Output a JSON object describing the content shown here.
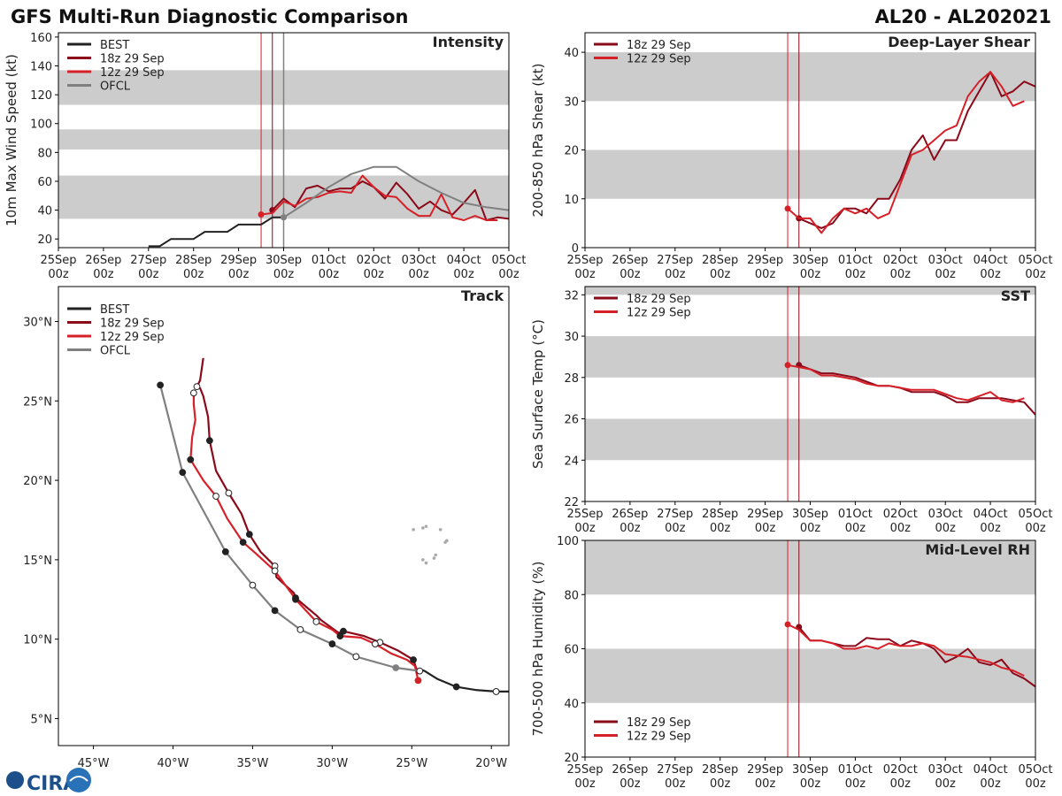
{
  "header": {
    "title": "GFS Multi-Run Diagnostic Comparison",
    "storm_id": "AL20 - AL202021",
    "logo_text": "CIRA"
  },
  "colors": {
    "best": "#222222",
    "run18z": "#8b0a1a",
    "run12z": "#d62028",
    "ofcl": "#808080",
    "band": "#cccccc",
    "land": "#aaaaaa"
  },
  "time_axis": {
    "ticks": [
      "25Sep 00z",
      "26Sep 00z",
      "27Sep 00z",
      "28Sep 00z",
      "29Sep 00z",
      "30Sep 00z",
      "01Oct 00z",
      "02Oct 00z",
      "03Oct 00z",
      "04Oct 00z",
      "05Oct 00z"
    ],
    "init_18z_day": 4.75,
    "init_12z_day": 4.5
  },
  "chart_data": [
    {
      "id": "intensity",
      "type": "line",
      "title": "Intensity",
      "ylabel": "10m Max Wind Speed (kt)",
      "ylim": [
        14,
        163
      ],
      "yticks": [
        20,
        40,
        60,
        80,
        100,
        120,
        140,
        160
      ],
      "bands": [
        [
          34,
          64
        ],
        [
          82,
          96
        ],
        [
          113,
          137
        ]
      ],
      "legend": [
        "BEST",
        "18z 29 Sep",
        "12z 29 Sep",
        "OFCL"
      ],
      "ofcl_init_day": 5.0,
      "series": [
        {
          "name": "BEST",
          "key": "best",
          "x": [
            2.0,
            2.25,
            2.5,
            2.75,
            3.0,
            3.25,
            3.5,
            3.75,
            4.0,
            4.25,
            4.5,
            4.75,
            5.0
          ],
          "values": [
            15,
            15,
            20,
            20,
            20,
            25,
            25,
            25,
            30,
            30,
            30,
            35,
            35
          ]
        },
        {
          "name": "18z 29 Sep",
          "key": "run18z",
          "x": [
            4.75,
            5.0,
            5.25,
            5.5,
            5.75,
            6.0,
            6.25,
            6.5,
            6.75,
            7.0,
            7.25,
            7.5,
            7.75,
            8.0,
            8.25,
            8.5,
            8.75,
            9.0,
            9.25,
            9.5,
            9.75,
            10.0
          ],
          "values": [
            40,
            48,
            42,
            55,
            57,
            53,
            55,
            55,
            60,
            56,
            48,
            59,
            51,
            41,
            46,
            40,
            37,
            45,
            54,
            33,
            35,
            34
          ]
        },
        {
          "name": "12z 29 Sep",
          "key": "run12z",
          "x": [
            4.5,
            4.75,
            5.0,
            5.25,
            5.5,
            5.75,
            6.0,
            6.25,
            6.5,
            6.75,
            7.0,
            7.25,
            7.5,
            7.75,
            8.0,
            8.25,
            8.5,
            8.75,
            9.0,
            9.25,
            9.5,
            9.75
          ],
          "values": [
            37,
            38,
            46,
            43,
            48,
            49,
            52,
            53,
            52,
            64,
            56,
            50,
            49,
            41,
            36,
            36,
            51,
            35,
            33,
            36,
            33,
            33
          ]
        },
        {
          "name": "OFCL",
          "key": "ofcl",
          "x": [
            5.0,
            5.5,
            6.0,
            6.5,
            7.0,
            7.5,
            8.0,
            8.5,
            9.0,
            9.5,
            10.0
          ],
          "values": [
            35,
            45,
            56,
            65,
            70,
            70,
            60,
            52,
            45,
            42,
            40
          ]
        }
      ]
    },
    {
      "id": "shear",
      "type": "line",
      "title": "Deep-Layer Shear",
      "ylabel": "200-850 hPa Shear (kt)",
      "ylim": [
        0,
        44
      ],
      "yticks": [
        0,
        10,
        20,
        30,
        40
      ],
      "bands": [
        [
          10,
          20
        ],
        [
          30,
          40
        ]
      ],
      "legend": [
        "18z 29 Sep",
        "12z 29 Sep"
      ],
      "series": [
        {
          "name": "18z 29 Sep",
          "key": "run18z",
          "x": [
            4.75,
            5.0,
            5.25,
            5.5,
            5.75,
            6.0,
            6.25,
            6.5,
            6.75,
            7.0,
            7.25,
            7.5,
            7.75,
            8.0,
            8.25,
            8.5,
            8.75,
            9.0,
            9.25,
            9.5,
            9.75,
            10.0
          ],
          "values": [
            6,
            5,
            4,
            5,
            8,
            8,
            7,
            10,
            10,
            14,
            20,
            23,
            18,
            22,
            22,
            28,
            32,
            36,
            31,
            32,
            34,
            33
          ]
        },
        {
          "name": "12z 29 Sep",
          "key": "run12z",
          "x": [
            4.5,
            4.75,
            5.0,
            5.25,
            5.5,
            5.75,
            6.0,
            6.25,
            6.5,
            6.75,
            7.0,
            7.25,
            7.5,
            7.75,
            8.0,
            8.25,
            8.5,
            8.75,
            9.0,
            9.25,
            9.5,
            9.75
          ],
          "values": [
            8,
            6,
            6,
            3,
            6,
            8,
            7,
            8,
            6,
            7,
            13,
            19,
            20,
            22,
            24,
            25,
            31,
            34,
            36,
            33,
            29,
            30
          ]
        }
      ]
    },
    {
      "id": "sst",
      "type": "line",
      "title": "SST",
      "ylabel": "Sea Surface Temp (°C)",
      "ylim": [
        22,
        32.4
      ],
      "yticks": [
        22,
        24,
        26,
        28,
        30,
        32
      ],
      "bands": [
        [
          24,
          26
        ],
        [
          28,
          30
        ],
        [
          32,
          32.4
        ]
      ],
      "legend": [
        "18z 29 Sep",
        "12z 29 Sep"
      ],
      "series": [
        {
          "name": "18z 29 Sep",
          "key": "run18z",
          "x": [
            4.75,
            5.0,
            5.25,
            5.5,
            5.75,
            6.0,
            6.25,
            6.5,
            6.75,
            7.0,
            7.25,
            7.5,
            7.75,
            8.0,
            8.25,
            8.5,
            8.75,
            9.0,
            9.25,
            9.5,
            9.75,
            10.0
          ],
          "values": [
            28.6,
            28.4,
            28.2,
            28.2,
            28.1,
            28.0,
            27.8,
            27.6,
            27.6,
            27.5,
            27.3,
            27.3,
            27.3,
            27.1,
            26.8,
            26.8,
            27.0,
            27.0,
            27.0,
            26.9,
            26.8,
            26.2
          ]
        },
        {
          "name": "12z 29 Sep",
          "key": "run12z",
          "x": [
            4.5,
            4.75,
            5.0,
            5.25,
            5.5,
            5.75,
            6.0,
            6.25,
            6.5,
            6.75,
            7.0,
            7.25,
            7.5,
            7.75,
            8.0,
            8.25,
            8.5,
            8.75,
            9.0,
            9.25,
            9.5,
            9.75
          ],
          "values": [
            28.6,
            28.5,
            28.4,
            28.1,
            28.1,
            28.0,
            27.9,
            27.7,
            27.6,
            27.6,
            27.5,
            27.4,
            27.4,
            27.4,
            27.2,
            27.0,
            26.9,
            27.1,
            27.3,
            26.9,
            26.8,
            27.0
          ]
        }
      ]
    },
    {
      "id": "rh",
      "type": "line",
      "title": "Mid-Level RH",
      "ylabel": "700-500 hPa Humidity (%)",
      "ylim": [
        20,
        100
      ],
      "yticks": [
        20,
        40,
        60,
        80,
        100
      ],
      "bands": [
        [
          40,
          60
        ],
        [
          80,
          100
        ]
      ],
      "legend": [
        "18z 29 Sep",
        "12z 29 Sep"
      ],
      "series": [
        {
          "name": "18z 29 Sep",
          "key": "run18z",
          "x": [
            4.75,
            5.0,
            5.25,
            5.5,
            5.75,
            6.0,
            6.25,
            6.5,
            6.75,
            7.0,
            7.25,
            7.5,
            7.75,
            8.0,
            8.25,
            8.5,
            8.75,
            9.0,
            9.25,
            9.5,
            9.75,
            10.0
          ],
          "values": [
            68,
            63,
            63,
            62,
            61,
            61,
            64,
            63.5,
            63.5,
            61,
            63,
            62,
            60,
            55,
            57,
            60,
            55,
            54,
            56,
            51,
            49,
            46
          ]
        },
        {
          "name": "12z 29 Sep",
          "key": "run12z",
          "x": [
            4.5,
            4.75,
            5.0,
            5.25,
            5.5,
            5.75,
            6.0,
            6.25,
            6.5,
            6.75,
            7.0,
            7.25,
            7.5,
            7.75,
            8.0,
            8.25,
            8.5,
            8.75,
            9.0,
            9.25,
            9.5,
            9.75
          ],
          "values": [
            69,
            67,
            63,
            63,
            62,
            60,
            60,
            61,
            60,
            62,
            61,
            61,
            62,
            61,
            58,
            57.5,
            57,
            56,
            55,
            53,
            52,
            50
          ]
        }
      ]
    },
    {
      "id": "track",
      "type": "scatter",
      "title": "Track",
      "xlim": [
        -47.2,
        -18.9
      ],
      "ylim": [
        3.3,
        32.2
      ],
      "xticks": [
        -45,
        -40,
        -35,
        -30,
        -25,
        -20
      ],
      "xtick_labels": [
        "45°W",
        "40°W",
        "35°W",
        "30°W",
        "25°W",
        "20°W"
      ],
      "yticks": [
        5,
        10,
        15,
        20,
        25,
        30
      ],
      "ytick_labels": [
        "5°N",
        "10°N",
        "15°N",
        "20°N",
        "25°N",
        "30°N"
      ],
      "legend": [
        "BEST",
        "18z 29 Sep",
        "12z 29 Sep",
        "OFCL"
      ],
      "series": [
        {
          "name": "BEST",
          "key": "best",
          "lon": [
            -18.9,
            -19.7,
            -21.0,
            -22.2,
            -23.4,
            -24.2,
            -24.5
          ],
          "lat": [
            6.7,
            6.7,
            6.8,
            7.0,
            7.5,
            8.0,
            8.1
          ],
          "markers": [
            [
              -19.7,
              6.7,
              "open"
            ],
            [
              -22.2,
              7.0,
              "filled"
            ],
            [
              -24.5,
              8.0,
              "open"
            ]
          ]
        },
        {
          "name": "18z 29 Sep",
          "key": "run18z",
          "lon": [
            -24.6,
            -24.9,
            -25.9,
            -27.0,
            -28.0,
            -29.3,
            -29.6,
            -30.7,
            -31.0,
            -32.3,
            -32.4,
            -33.5,
            -33.6,
            -34.5,
            -35.2,
            -35.7,
            -36.5,
            -37.3,
            -37.7,
            -37.8,
            -38.1,
            -38.3,
            -38.5,
            -38.3,
            -38.1
          ],
          "lat": [
            7.8,
            8.7,
            9.3,
            9.8,
            10.2,
            10.5,
            10.4,
            11.2,
            11.5,
            12.6,
            12.9,
            13.9,
            14.6,
            15.5,
            16.6,
            17.9,
            19.2,
            20.6,
            22.5,
            24.0,
            25.3,
            25.8,
            25.9,
            26.3,
            27.7
          ],
          "markers": [
            [
              -24.9,
              8.7,
              "filled"
            ],
            [
              -27.0,
              9.8,
              "open"
            ],
            [
              -29.3,
              10.5,
              "filled"
            ],
            [
              -32.3,
              12.6,
              "filled"
            ],
            [
              -33.6,
              14.6,
              "open"
            ],
            [
              -35.2,
              16.6,
              "filled"
            ],
            [
              -36.5,
              19.2,
              "open"
            ],
            [
              -37.7,
              22.5,
              "filled"
            ],
            [
              -38.5,
              25.9,
              "open"
            ]
          ]
        },
        {
          "name": "12z 29 Sep",
          "key": "run12z",
          "lon": [
            -24.6,
            -24.8,
            -25.3,
            -26.3,
            -27.3,
            -28.2,
            -29.5,
            -30.0,
            -31.0,
            -32.3,
            -32.5,
            -33.6,
            -34.8,
            -35.6,
            -36.6,
            -37.3,
            -38.1,
            -38.9,
            -38.8,
            -38.6,
            -38.7,
            -38.7
          ],
          "lat": [
            7.4,
            8.3,
            8.7,
            9.1,
            9.7,
            10.1,
            10.2,
            10.6,
            11.1,
            12.5,
            12.8,
            14.3,
            15.4,
            16.1,
            17.6,
            19.0,
            20.0,
            21.3,
            22.7,
            23.8,
            24.8,
            25.5
          ],
          "markers": [
            [
              -24.6,
              7.4,
              "filled"
            ],
            [
              -27.3,
              9.7,
              "open"
            ],
            [
              -29.5,
              10.2,
              "filled"
            ],
            [
              -31.0,
              11.1,
              "open"
            ],
            [
              -32.3,
              12.5,
              "filled"
            ],
            [
              -33.6,
              14.3,
              "open"
            ],
            [
              -35.6,
              16.1,
              "filled"
            ],
            [
              -37.3,
              19.0,
              "open"
            ],
            [
              -38.9,
              21.3,
              "filled"
            ],
            [
              -38.7,
              25.5,
              "open"
            ]
          ]
        },
        {
          "name": "OFCL",
          "key": "ofcl",
          "lon": [
            -24.5,
            -26.0,
            -28.5,
            -30.0,
            -32.0,
            -33.6,
            -35.0,
            -36.7,
            -39.4,
            -40.8
          ],
          "lat": [
            8.0,
            8.2,
            8.9,
            9.7,
            10.6,
            11.8,
            13.4,
            15.5,
            20.5,
            26.0
          ],
          "markers": [
            [
              -26.0,
              8.2,
              "gray"
            ],
            [
              -28.5,
              8.9,
              "open"
            ],
            [
              -30.0,
              9.7,
              "filled"
            ],
            [
              -32.0,
              10.6,
              "open"
            ],
            [
              -33.6,
              11.8,
              "filled"
            ],
            [
              -35.0,
              13.4,
              "open"
            ],
            [
              -36.7,
              15.5,
              "filled"
            ],
            [
              -39.4,
              20.5,
              "filled"
            ],
            [
              -40.8,
              26.0,
              "filled"
            ]
          ]
        }
      ],
      "land_points": [
        [
          -24.1,
          17.1
        ],
        [
          -24.3,
          17.0
        ],
        [
          -24.9,
          16.9
        ],
        [
          -23.2,
          16.9
        ],
        [
          -22.9,
          16.1
        ],
        [
          -22.8,
          16.2
        ],
        [
          -23.6,
          15.1
        ],
        [
          -23.5,
          15.3
        ],
        [
          -24.3,
          15.0
        ],
        [
          -24.1,
          14.8
        ]
      ]
    }
  ]
}
